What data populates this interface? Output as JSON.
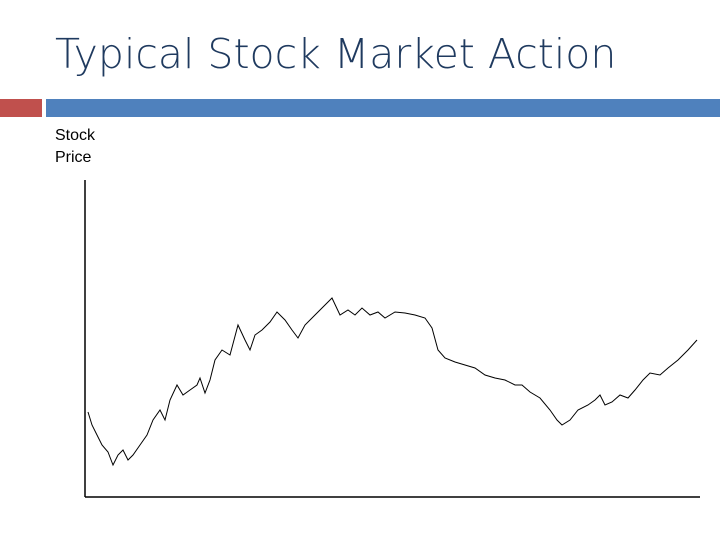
{
  "chart_data": {
    "type": "line",
    "title": "Typical Stock Market Action",
    "y_label": "Stock Price",
    "color": "#000000",
    "xlim": [
      0,
      615
    ],
    "ylim": [
      0,
      317
    ],
    "x": [
      3,
      7,
      12,
      17,
      23,
      28,
      33,
      38,
      43,
      48,
      55,
      62,
      68,
      75,
      80,
      85,
      92,
      98,
      105,
      112,
      115,
      120,
      125,
      130,
      137,
      145,
      153,
      160,
      165,
      170,
      177,
      185,
      192,
      200,
      207,
      213,
      220,
      230,
      240,
      247,
      255,
      263,
      270,
      277,
      285,
      293,
      300,
      310,
      320,
      330,
      340,
      347,
      353,
      360,
      370,
      380,
      390,
      400,
      410,
      420,
      430,
      437,
      445,
      455,
      465,
      472,
      477,
      485,
      493,
      503,
      510,
      515,
      520,
      527,
      535,
      543,
      550,
      558,
      565,
      575,
      583,
      593,
      603,
      612
    ],
    "values": [
      85,
      72,
      62,
      52,
      45,
      32,
      42,
      47,
      37,
      42,
      52,
      62,
      77,
      87,
      77,
      97,
      112,
      102,
      107,
      112,
      119,
      104,
      117,
      137,
      147,
      142,
      172,
      157,
      147,
      162,
      167,
      175,
      185,
      177,
      167,
      159,
      172,
      182,
      192,
      199,
      182,
      187,
      182,
      189,
      182,
      185,
      179,
      185,
      184,
      182,
      179,
      169,
      147,
      139,
      135,
      132,
      129,
      122,
      119,
      117,
      112,
      112,
      105,
      99,
      87,
      77,
      72,
      77,
      87,
      92,
      97,
      102,
      92,
      95,
      102,
      99,
      107,
      117,
      124,
      122,
      129,
      137,
      147,
      157
    ]
  }
}
